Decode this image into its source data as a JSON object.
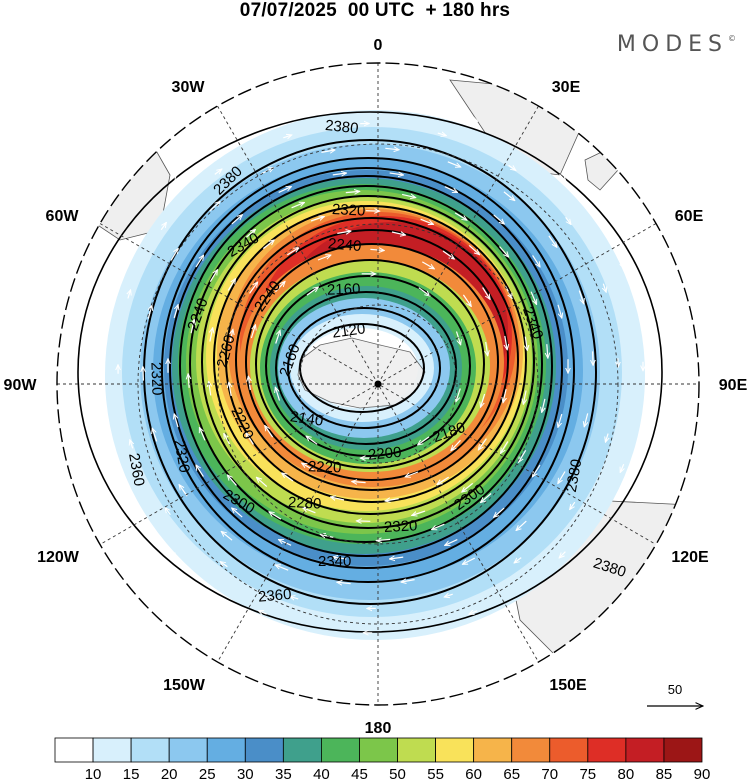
{
  "title": "07/07/2025  00 UTC  + 180 hrs",
  "brand": "MODES",
  "brand_mark": "©",
  "longitude_labels": {
    "top": "0",
    "top_left": "30W",
    "top_right": "30E",
    "upper_left": "60W",
    "upper_right": "60E",
    "left": "90W",
    "right": "90E",
    "lower_left": "120W",
    "lower_right": "120E",
    "bottom_left": "150W",
    "bottom_right": "150E",
    "bottom": "180"
  },
  "contour_labels": [
    "2380",
    "2380",
    "2380",
    "2380",
    "2360",
    "2360",
    "2340",
    "2340",
    "2340",
    "2320",
    "2320",
    "2320",
    "2320",
    "2300",
    "2300",
    "2280",
    "2260",
    "2240",
    "2240",
    "2240",
    "2220",
    "2220",
    "2200",
    "2180",
    "2160",
    "2160",
    "2140",
    "2120",
    "2380"
  ],
  "reference_vector_label": "50",
  "colorbar": {
    "ticks": [
      "10",
      "15",
      "20",
      "25",
      "30",
      "35",
      "40",
      "45",
      "50",
      "55",
      "60",
      "65",
      "70",
      "75",
      "80",
      "85",
      "90"
    ],
    "colors": [
      "#ffffff",
      "#d8f0fc",
      "#b2dff7",
      "#8cc8ef",
      "#64aee2",
      "#4a8ec8",
      "#3fa08c",
      "#4cb55a",
      "#7cc64a",
      "#bfdc50",
      "#f9e25a",
      "#f6b44a",
      "#f28a3a",
      "#ec5c2c",
      "#de2e26",
      "#c41e24",
      "#9c1616"
    ]
  }
}
